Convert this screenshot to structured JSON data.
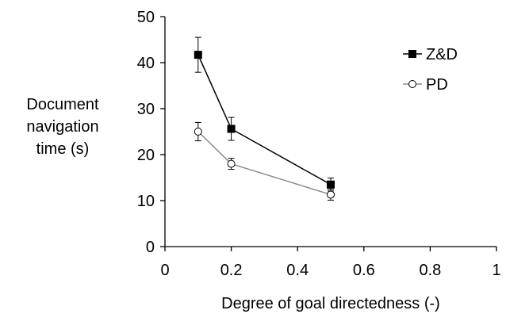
{
  "chart_data": {
    "type": "line",
    "title": "",
    "xlabel": "Degree of goal directedness (-)",
    "ylabel_lines": [
      "Document",
      "navigation",
      "time (s)"
    ],
    "xlim": [
      0,
      1
    ],
    "ylim": [
      0,
      50
    ],
    "xticks": [
      0,
      0.2,
      0.4,
      0.6,
      0.8,
      1
    ],
    "xtick_labels": [
      "0",
      "0.2",
      "0.4",
      "0.6",
      "0.8",
      "1"
    ],
    "yticks": [
      0,
      10,
      20,
      30,
      40,
      50
    ],
    "ytick_labels": [
      "0",
      "10",
      "20",
      "30",
      "40",
      "50"
    ],
    "grid": false,
    "legend_position": "top-right",
    "x": [
      0.1,
      0.2,
      0.5
    ],
    "series": [
      {
        "name": "Z&D",
        "values": [
          41.7,
          25.6,
          13.5
        ],
        "error": [
          3.8,
          2.5,
          1.4
        ],
        "marker": "filled-square",
        "color": "#000000"
      },
      {
        "name": "PD",
        "values": [
          25.0,
          18.0,
          11.3
        ],
        "error": [
          2.0,
          1.2,
          1.2
        ],
        "marker": "open-circle",
        "color": "#8c8c8c"
      }
    ]
  }
}
